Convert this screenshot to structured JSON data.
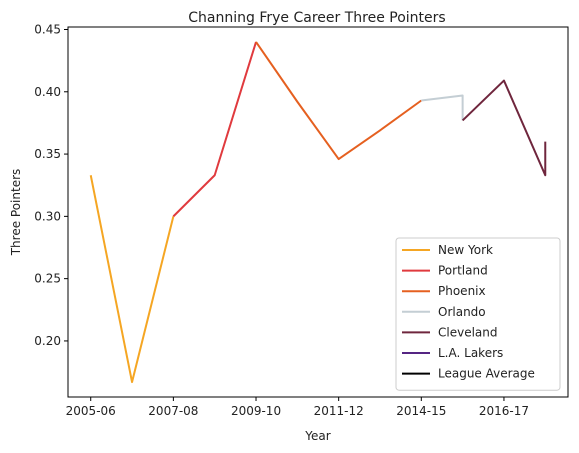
{
  "chart_data": {
    "type": "line",
    "title": "Channing Frye Career Three Pointers",
    "xlabel": "Year",
    "ylabel": "Three Pointers",
    "x_tick_labels": [
      "2005-06",
      "2007-08",
      "2009-10",
      "2011-12",
      "2014-15",
      "2016-17"
    ],
    "y_ticks": [
      0.2,
      0.25,
      0.3,
      0.35,
      0.4,
      0.45
    ],
    "y_tick_labels": [
      "0.20",
      "0.25",
      "0.30",
      "0.35",
      "0.40",
      "0.45"
    ],
    "xlim": [
      -0.55,
      11.55
    ],
    "ylim": [
      0.155,
      0.452
    ],
    "grid": false,
    "legend_position": "lower-right",
    "series": [
      {
        "name": "New York",
        "color": "#f5a623",
        "points": [
          [
            0,
            0.333
          ],
          [
            1,
            0.167
          ],
          [
            2,
            0.3
          ]
        ]
      },
      {
        "name": "Portland",
        "color": "#e03a3e",
        "points": [
          [
            2,
            0.3
          ],
          [
            3,
            0.333
          ],
          [
            4,
            0.44
          ]
        ]
      },
      {
        "name": "Phoenix",
        "color": "#e56020",
        "points": [
          [
            4,
            0.44
          ],
          [
            5,
            0.392
          ],
          [
            6,
            0.346
          ],
          [
            7,
            0.369
          ],
          [
            8,
            0.393
          ]
        ]
      },
      {
        "name": "Orlando",
        "color": "#c4ced4",
        "points": [
          [
            8,
            0.393
          ],
          [
            9,
            0.397
          ],
          [
            9,
            0.377
          ]
        ]
      },
      {
        "name": "Cleveland",
        "color": "#6f263d",
        "points": [
          [
            9,
            0.377
          ],
          [
            10,
            0.409
          ],
          [
            11,
            0.333
          ],
          [
            11,
            0.36
          ]
        ]
      },
      {
        "name": "L.A. Lakers",
        "color": "#552583",
        "points": []
      },
      {
        "name": "League Average",
        "color": "#000000",
        "points": []
      }
    ]
  }
}
